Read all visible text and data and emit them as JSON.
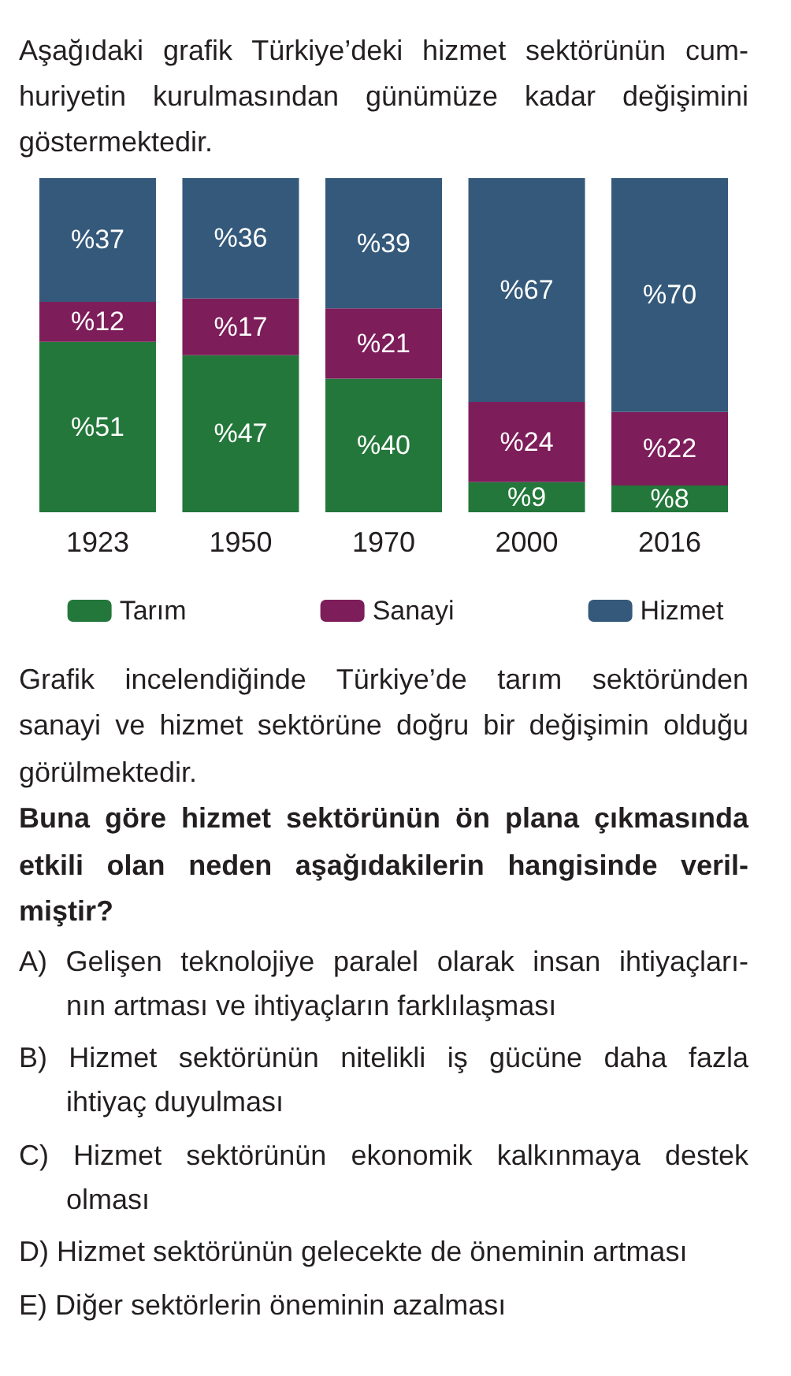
{
  "chart_data": {
    "type": "bar",
    "title": "Aşağıdaki grafik Türkiye’deki hizmet sektörünün cum-\nhuriyetin kurulmasından günümüze kadar değişimini\ngöstermektedir.",
    "categories": [
      "1923",
      "1950",
      "1970",
      "2000",
      "2016"
    ],
    "stacked": true,
    "series": [
      {
        "name": "Tarım",
        "color": "#23773a",
        "values": [
          51,
          47,
          40,
          9,
          8
        ],
        "value_labels": [
          "%51",
          "%47",
          "%40",
          "%9",
          "%8"
        ]
      },
      {
        "name": "Sanayi",
        "color": "#7d1d5a",
        "values": [
          12,
          17,
          21,
          24,
          22
        ],
        "value_labels": [
          "%12",
          "%17",
          "%21",
          "%24",
          "%22"
        ]
      },
      {
        "name": "Hizmet",
        "color": "#34597a",
        "values": [
          37,
          36,
          39,
          67,
          70
        ],
        "value_labels": [
          "%37",
          "%36",
          "%39",
          "%67",
          "%70"
        ]
      }
    ],
    "legend": "bottom",
    "tick_labels": "x",
    "annotations": [
      "Grafik incelendiğinde Türkiye’de tarım sektöründen\nsanayi ve hizmet sektörüne doğru bir değişimin olduğu\ngörülmektedir.",
      "Buna göre hizmet sektörünün ön plana çıkmasında\netkili olan neden aşağıdakilerin hangisinde veril-\nmiştir?",
      "A) Gelişen teknolojiye paralel olarak insan ihtiyaçları-\nnın artması ve ihtiyaçların farklılaşması",
      "B) Hizmet sektörünün nitelikli iş gücüne daha fazla\nihtiyaç duyulması",
      "C) Hizmet sektörünün ekonomik kalkınmaya destek\nolması",
      "D) Hizmet sektörünün gelecekte de öneminin artması",
      "E) Diğer sektörlerin öneminin azalması"
    ]
  }
}
